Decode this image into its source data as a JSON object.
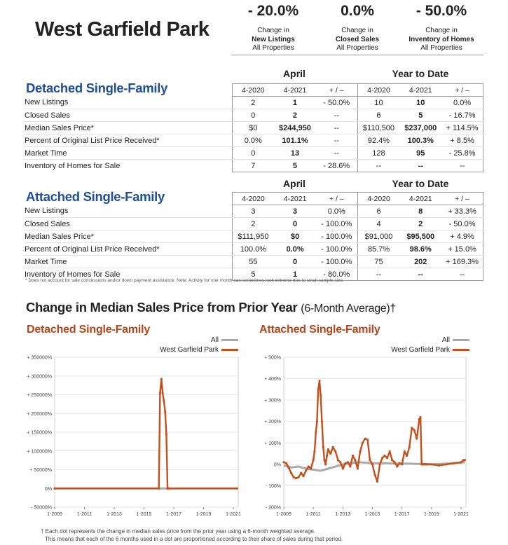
{
  "page": {
    "title": "West Garfield Park",
    "stats": [
      {
        "value": "- 20.0%",
        "line1": "Change in",
        "line2": "New Listings",
        "line3": "All Properties"
      },
      {
        "value": "0.0%",
        "line1": "Change in",
        "line2": "Closed Sales",
        "line3": "All Properties"
      },
      {
        "value": "- 50.0%",
        "line1": "Change in",
        "line2": "Inventory of Homes",
        "line3": "All Properties"
      }
    ]
  },
  "detached": {
    "title": "Detached Single-Family",
    "period1": "April",
    "period2": "Year to Date",
    "cols": [
      "4-2020",
      "4-2021",
      "+ / –",
      "4-2020",
      "4-2021",
      "+ / –"
    ],
    "rows": [
      {
        "label": "New Listings",
        "v": [
          "2",
          "1",
          "- 50.0%",
          "10",
          "10",
          "0.0%"
        ]
      },
      {
        "label": "Closed Sales",
        "v": [
          "0",
          "2",
          "--",
          "6",
          "5",
          "- 16.7%"
        ]
      },
      {
        "label": "Median Sales Price*",
        "v": [
          "$0",
          "$244,950",
          "--",
          "$110,500",
          "$237,000",
          "+ 114.5%"
        ]
      },
      {
        "label": "Percent of Original List Price Received*",
        "v": [
          "0.0%",
          "101.1%",
          "--",
          "92.4%",
          "100.3%",
          "+ 8.5%"
        ]
      },
      {
        "label": "Market Time",
        "v": [
          "0",
          "13",
          "--",
          "128",
          "95",
          "- 25.8%"
        ]
      },
      {
        "label": "Inventory of Homes for Sale",
        "v": [
          "7",
          "5",
          "- 28.6%",
          "--",
          "--",
          "--"
        ]
      }
    ]
  },
  "attached": {
    "title": "Attached Single-Family",
    "period1": "April",
    "period2": "Year to Date",
    "cols": [
      "4-2020",
      "4-2021",
      "+ / –",
      "4-2020",
      "4-2021",
      "+ / –"
    ],
    "rows": [
      {
        "label": "New Listings",
        "v": [
          "3",
          "3",
          "0.0%",
          "6",
          "8",
          "+ 33.3%"
        ]
      },
      {
        "label": "Closed Sales",
        "v": [
          "2",
          "0",
          "- 100.0%",
          "4",
          "2",
          "- 50.0%"
        ]
      },
      {
        "label": "Median Sales Price*",
        "v": [
          "$111,950",
          "$0",
          "- 100.0%",
          "$91,000",
          "$95,500",
          "+ 4.9%"
        ]
      },
      {
        "label": "Percent of Original List Price Received*",
        "v": [
          "100.0%",
          "0.0%",
          "- 100.0%",
          "85.7%",
          "98.6%",
          "+ 15.0%"
        ]
      },
      {
        "label": "Market Time",
        "v": [
          "55",
          "0",
          "- 100.0%",
          "75",
          "202",
          "+ 169.3%"
        ]
      },
      {
        "label": "Inventory of Homes for Sale",
        "v": [
          "5",
          "1",
          "- 80.0%",
          "--",
          "--",
          "--"
        ]
      }
    ],
    "note": "* Does not account for sale concessions and/or down payment assistance. Note: Activity for one month can sometimes look extreme due to small sample size."
  },
  "charts_section": {
    "heading": "Change in Median Sales Price from Prior Year",
    "heading_suffix": "(6-Month Average)†",
    "footnote1": "† Each dot represents the change in median sales price from the prior year using a 6-month weighted average.",
    "footnote2": "This means that each of the 6 months used in a dot are proportioned according to their share of sales during that period."
  },
  "colors": {
    "all": "#aaaaaa",
    "local": "#c4501c",
    "title_blue": "#1f4e9a",
    "chart_title": "#b5461b"
  },
  "chart_data": [
    {
      "type": "line",
      "title": "Detached Single-Family",
      "x_ticks": [
        "1-2009",
        "1-2011",
        "1-2013",
        "1-2015",
        "1-2017",
        "1-2019",
        "1-2021"
      ],
      "y_ticks": [
        "+ 350000%",
        "+ 300000%",
        "+ 250000%",
        "+ 200000%",
        "+ 150000%",
        "+ 100000%",
        "+ 50000%",
        "0%",
        "- 50000%"
      ],
      "ylim": [
        -50000,
        350000
      ],
      "xlim": [
        2009.0,
        2021.33
      ],
      "series": [
        {
          "name": "All",
          "x": [
            2009.0,
            2021.25
          ],
          "y": [
            0,
            0
          ]
        },
        {
          "name": "West Garfield Park",
          "x": [
            2009.0,
            2016.0,
            2016.08,
            2016.17,
            2016.25,
            2016.33,
            2016.42,
            2016.5,
            2016.58,
            2016.67,
            2021.25
          ],
          "y": [
            0,
            0,
            255000,
            292000,
            255000,
            235000,
            205000,
            145000,
            0,
            0,
            0
          ]
        }
      ]
    },
    {
      "type": "line",
      "title": "Attached Single-Family",
      "x_ticks": [
        "1-2009",
        "1-2011",
        "1-2013",
        "1-2015",
        "1-2017",
        "1-2019",
        "1-2021"
      ],
      "y_ticks": [
        "+ 500%",
        "+ 400%",
        "+ 300%",
        "+ 200%",
        "+ 100%",
        "0%",
        "- 100%",
        "- 200%"
      ],
      "ylim": [
        -200,
        500
      ],
      "xlim": [
        2009.0,
        2021.33
      ],
      "series": [
        {
          "name": "All",
          "x": [
            2009.0,
            2009.5,
            2010.0,
            2010.5,
            2011.0,
            2011.5,
            2012.0,
            2012.5,
            2013.0,
            2013.5,
            2014.0,
            2014.5,
            2015.0,
            2015.5,
            2016.0,
            2016.5,
            2017.0,
            2017.5,
            2018.0,
            2018.5,
            2019.0,
            2019.5,
            2020.0,
            2020.5,
            2021.0,
            2021.25
          ],
          "y": [
            -5,
            -15,
            -10,
            -20,
            -25,
            -30,
            -20,
            -10,
            0,
            5,
            10,
            8,
            5,
            5,
            5,
            3,
            3,
            3,
            2,
            2,
            0,
            2,
            3,
            5,
            8,
            10
          ]
        },
        {
          "name": "West Garfield Park",
          "x": [
            2009.0,
            2009.17,
            2009.33,
            2009.5,
            2009.67,
            2009.83,
            2010.0,
            2010.17,
            2010.33,
            2010.5,
            2010.67,
            2010.83,
            2011.0,
            2011.08,
            2011.17,
            2011.25,
            2011.33,
            2011.42,
            2011.5,
            2011.58,
            2011.67,
            2011.75,
            2011.83,
            2011.92,
            2012.0,
            2012.17,
            2012.33,
            2012.5,
            2012.67,
            2012.83,
            2013.0,
            2013.17,
            2013.33,
            2013.5,
            2013.67,
            2013.83,
            2014.0,
            2014.17,
            2014.33,
            2014.5,
            2014.67,
            2014.83,
            2015.0,
            2015.17,
            2015.33,
            2015.5,
            2015.67,
            2015.83,
            2016.0,
            2016.17,
            2016.33,
            2016.5,
            2016.67,
            2016.83,
            2017.0,
            2017.17,
            2017.33,
            2017.5,
            2017.67,
            2017.83,
            2018.0,
            2018.17,
            2018.25,
            2018.33,
            2018.42,
            2018.5,
            2018.58,
            2018.67,
            2018.75,
            2019.0,
            2019.5,
            2020.0,
            2020.5,
            2021.0,
            2021.17,
            2021.25
          ],
          "y": [
            10,
            5,
            -15,
            -40,
            -60,
            -65,
            -60,
            -40,
            -55,
            -30,
            -10,
            -20,
            20,
            60,
            150,
            200,
            350,
            390,
            320,
            200,
            80,
            20,
            0,
            40,
            70,
            50,
            80,
            60,
            20,
            10,
            -20,
            5,
            10,
            -10,
            40,
            20,
            -20,
            60,
            100,
            120,
            115,
            20,
            0,
            -50,
            -80,
            0,
            30,
            40,
            30,
            60,
            20,
            10,
            -10,
            5,
            0,
            60,
            40,
            80,
            170,
            160,
            120,
            210,
            220,
            0,
            0,
            0,
            0,
            0,
            0,
            0,
            -5,
            0,
            5,
            10,
            20,
            20
          ]
        }
      ]
    }
  ]
}
